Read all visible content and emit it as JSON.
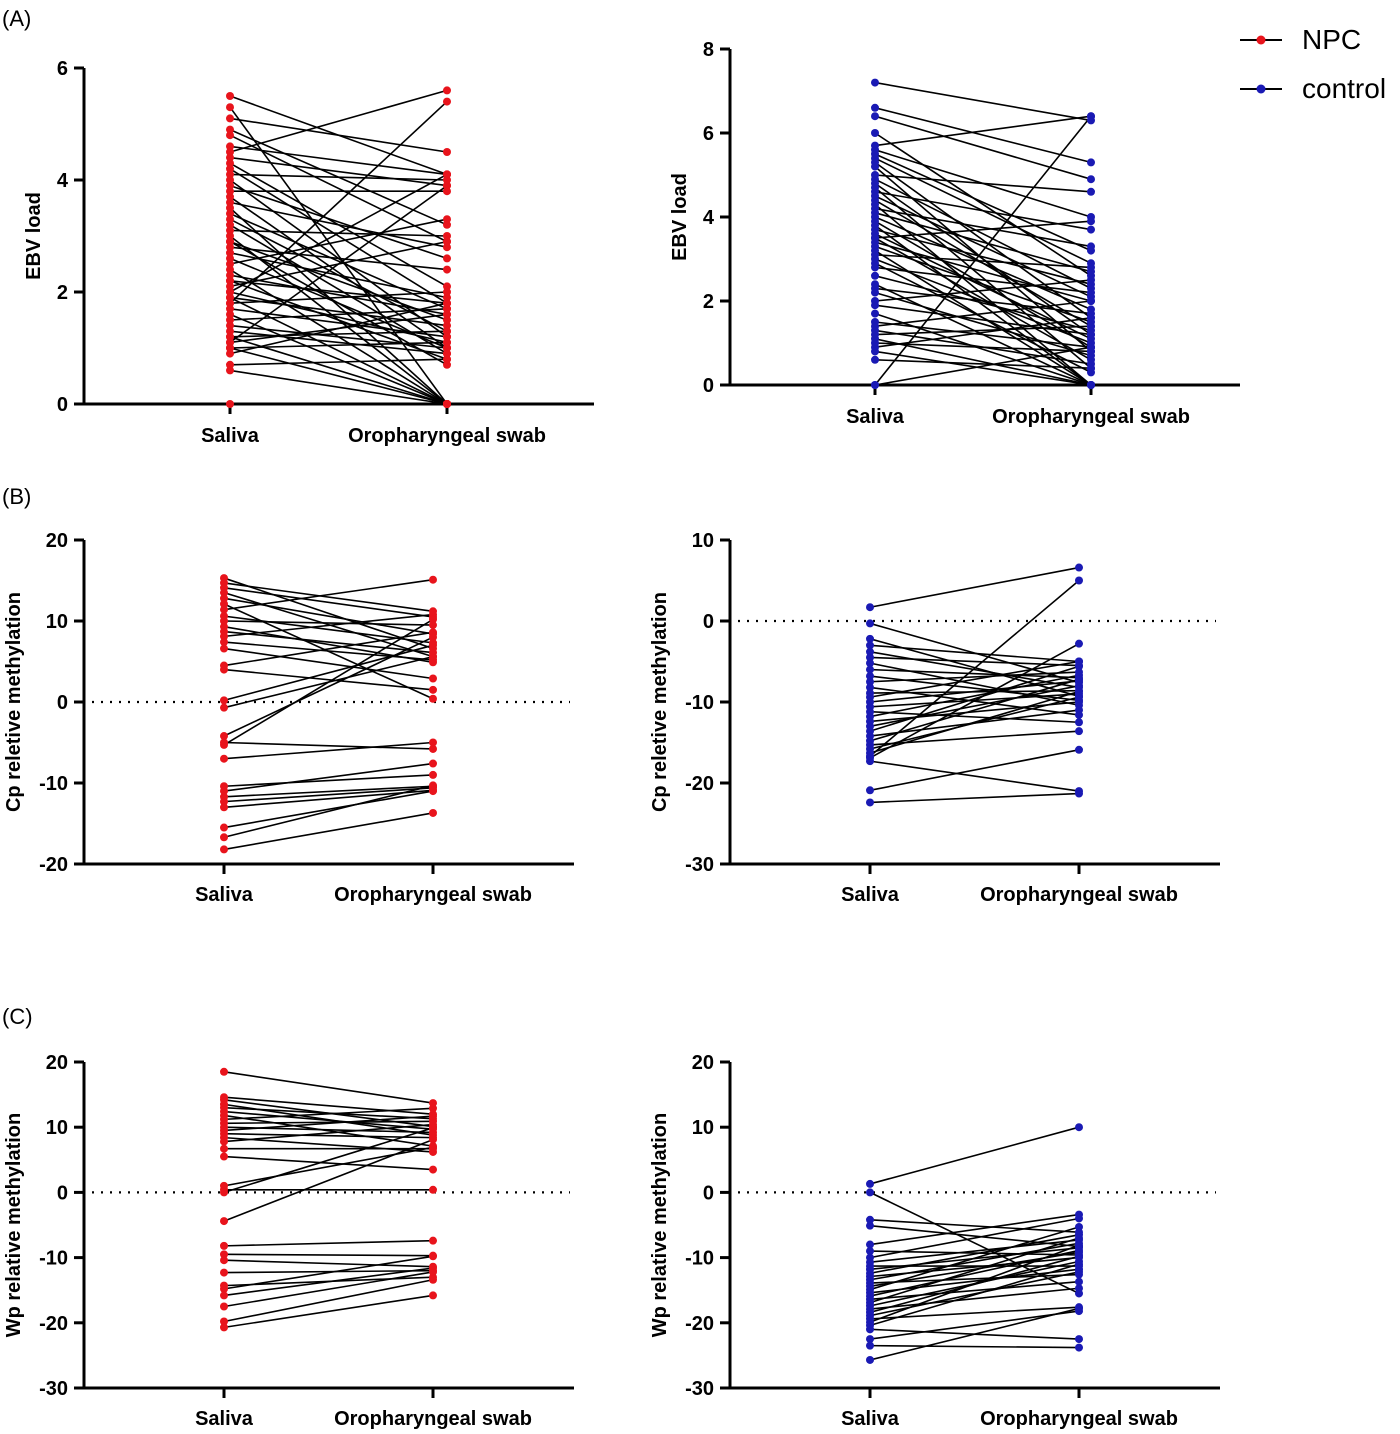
{
  "panel_labels": [
    "(A)",
    "(B)",
    "(C)"
  ],
  "legend": [
    {
      "label": "NPC",
      "color": "#e8141c"
    },
    {
      "label": "control",
      "color": "#1a1ab4"
    }
  ],
  "chart_data": [
    {
      "id": "A-npc",
      "panel": "(A)",
      "group": "NPC",
      "type": "line",
      "ylabel": "EBV load",
      "categories": [
        "Saliva",
        "Oropharyngeal swab"
      ],
      "ylim": [
        0,
        6
      ],
      "yticks": [
        0,
        2,
        4,
        6
      ],
      "zero_line": false,
      "color": "#e8141c",
      "pairs": [
        [
          5.5,
          4.1
        ],
        [
          5.3,
          0.0
        ],
        [
          5.1,
          4.5
        ],
        [
          4.9,
          3.2
        ],
        [
          4.8,
          2.9
        ],
        [
          4.6,
          4.1
        ],
        [
          4.5,
          5.6
        ],
        [
          4.4,
          3.9
        ],
        [
          4.3,
          2.1
        ],
        [
          4.2,
          1.8
        ],
        [
          4.1,
          4.0
        ],
        [
          4.0,
          1.2
        ],
        [
          3.9,
          2.6
        ],
        [
          3.8,
          3.8
        ],
        [
          3.7,
          1.0
        ],
        [
          3.6,
          2.8
        ],
        [
          3.5,
          0.0
        ],
        [
          3.4,
          1.7
        ],
        [
          3.3,
          1.3
        ],
        [
          3.2,
          0.9
        ],
        [
          3.1,
          3.0
        ],
        [
          3.0,
          0.0
        ],
        [
          2.9,
          1.5
        ],
        [
          2.9,
          0.7
        ],
        [
          2.8,
          2.4
        ],
        [
          2.7,
          1.9
        ],
        [
          2.6,
          1.0
        ],
        [
          2.5,
          3.3
        ],
        [
          2.4,
          0.0
        ],
        [
          2.3,
          1.6
        ],
        [
          2.2,
          0.8
        ],
        [
          2.2,
          1.8
        ],
        [
          2.1,
          2.9
        ],
        [
          2.0,
          1.1
        ],
        [
          2.0,
          4.1
        ],
        [
          1.9,
          0.0
        ],
        [
          1.9,
          1.4
        ],
        [
          1.8,
          5.4
        ],
        [
          1.8,
          2.0
        ],
        [
          1.7,
          1.2
        ],
        [
          1.6,
          0.0
        ],
        [
          1.5,
          1.7
        ],
        [
          1.4,
          1.0
        ],
        [
          1.3,
          0.9
        ],
        [
          1.2,
          1.3
        ],
        [
          1.2,
          0.0
        ],
        [
          1.1,
          3.9
        ],
        [
          1.1,
          1.6
        ],
        [
          1.0,
          1.1
        ],
        [
          1.0,
          0.0
        ],
        [
          0.9,
          1.8
        ],
        [
          0.7,
          0.8
        ],
        [
          0.6,
          0.0
        ],
        [
          0.0,
          0.0
        ]
      ]
    },
    {
      "id": "A-ctrl",
      "panel": "(A)",
      "group": "control",
      "type": "line",
      "ylabel": "EBV load",
      "categories": [
        "Saliva",
        "Oropharyngeal swab"
      ],
      "ylim": [
        0,
        8
      ],
      "yticks": [
        0,
        2,
        4,
        6,
        8
      ],
      "zero_line": false,
      "color": "#1a1ab4",
      "pairs": [
        [
          7.2,
          6.3
        ],
        [
          6.6,
          5.3
        ],
        [
          6.4,
          4.9
        ],
        [
          6.0,
          2.6
        ],
        [
          5.7,
          6.4
        ],
        [
          5.6,
          4.0
        ],
        [
          5.5,
          3.2
        ],
        [
          5.4,
          2.9
        ],
        [
          5.3,
          1.6
        ],
        [
          5.2,
          0.8
        ],
        [
          5.0,
          4.6
        ],
        [
          4.9,
          2.3
        ],
        [
          4.8,
          1.2
        ],
        [
          4.7,
          0.4
        ],
        [
          4.6,
          3.7
        ],
        [
          4.5,
          2.1
        ],
        [
          4.4,
          1.4
        ],
        [
          4.3,
          0.0
        ],
        [
          4.2,
          3.3
        ],
        [
          4.1,
          2.7
        ],
        [
          4.0,
          1.8
        ],
        [
          3.9,
          0.9
        ],
        [
          3.8,
          0.0
        ],
        [
          3.7,
          2.4
        ],
        [
          3.6,
          1.1
        ],
        [
          3.5,
          3.9
        ],
        [
          3.5,
          0.6
        ],
        [
          3.4,
          2.0
        ],
        [
          3.3,
          1.5
        ],
        [
          3.2,
          0.0
        ],
        [
          3.1,
          2.8
        ],
        [
          3.0,
          1.0
        ],
        [
          2.9,
          0.3
        ],
        [
          2.8,
          2.2
        ],
        [
          2.6,
          1.3
        ],
        [
          2.4,
          0.0
        ],
        [
          2.3,
          1.7
        ],
        [
          2.2,
          0.7
        ],
        [
          2.0,
          2.5
        ],
        [
          1.9,
          1.2
        ],
        [
          1.7,
          0.0
        ],
        [
          1.5,
          0.9
        ],
        [
          1.4,
          2.0
        ],
        [
          1.3,
          0.5
        ],
        [
          1.2,
          1.4
        ],
        [
          1.1,
          0.0
        ],
        [
          1.0,
          0.8
        ],
        [
          0.9,
          1.6
        ],
        [
          0.8,
          0.0
        ],
        [
          0.6,
          0.4
        ],
        [
          0.0,
          6.4
        ],
        [
          0.0,
          0.9
        ]
      ]
    },
    {
      "id": "B-npc",
      "panel": "(B)",
      "group": "NPC",
      "type": "line",
      "ylabel": "Cp reletive methylation",
      "categories": [
        "Saliva",
        "Oropharyngeal swab"
      ],
      "ylim": [
        -20,
        20
      ],
      "yticks": [
        -20,
        -10,
        0,
        10,
        20
      ],
      "zero_line": true,
      "color": "#e8141c",
      "pairs": [
        [
          15.3,
          6.6
        ],
        [
          14.7,
          11.2
        ],
        [
          14.1,
          10.5
        ],
        [
          13.5,
          5.6
        ],
        [
          12.8,
          8.4
        ],
        [
          12.1,
          0.4
        ],
        [
          11.4,
          15.1
        ],
        [
          10.6,
          7.3
        ],
        [
          10.0,
          9.5
        ],
        [
          9.3,
          4.9
        ],
        [
          8.7,
          6.1
        ],
        [
          8.1,
          10.8
        ],
        [
          7.4,
          5.2
        ],
        [
          6.6,
          2.9
        ],
        [
          4.5,
          8.6
        ],
        [
          4.0,
          1.5
        ],
        [
          0.2,
          7.0
        ],
        [
          -0.7,
          5.6
        ],
        [
          -4.2,
          8.0
        ],
        [
          -5.0,
          -5.8
        ],
        [
          -5.3,
          10.2
        ],
        [
          -7.0,
          -5.0
        ],
        [
          -10.4,
          -9.0
        ],
        [
          -11.0,
          -7.6
        ],
        [
          -11.7,
          -10.4
        ],
        [
          -12.3,
          -10.6
        ],
        [
          -13.0,
          -10.9
        ],
        [
          -15.5,
          -11.0
        ],
        [
          -16.7,
          -10.3
        ],
        [
          -18.2,
          -13.7
        ]
      ]
    },
    {
      "id": "B-ctrl",
      "panel": "(B)",
      "group": "control",
      "type": "line",
      "ylabel": "Cp reletive methylation",
      "categories": [
        "Saliva",
        "Oropharyngeal swab"
      ],
      "ylim": [
        -30,
        10
      ],
      "yticks": [
        -30,
        -20,
        -10,
        0,
        10
      ],
      "zero_line": true,
      "color": "#1a1ab4",
      "pairs": [
        [
          1.7,
          6.6
        ],
        [
          -0.3,
          -7.6
        ],
        [
          -2.2,
          -9.3
        ],
        [
          -3.0,
          -5.0
        ],
        [
          -3.8,
          -8.2
        ],
        [
          -4.5,
          -5.5
        ],
        [
          -5.2,
          -10.4
        ],
        [
          -6.0,
          -7.0
        ],
        [
          -6.8,
          -9.8
        ],
        [
          -7.5,
          -6.3
        ],
        [
          -8.2,
          -11.6
        ],
        [
          -8.9,
          -8.6
        ],
        [
          -9.4,
          -5.0
        ],
        [
          -10.0,
          -7.4
        ],
        [
          -10.6,
          -9.0
        ],
        [
          -11.2,
          -12.5
        ],
        [
          -11.8,
          -6.7
        ],
        [
          -12.4,
          -10.0
        ],
        [
          -13.0,
          -8.0
        ],
        [
          -13.6,
          -5.6
        ],
        [
          -14.2,
          -11.0
        ],
        [
          -14.8,
          -7.2
        ],
        [
          -15.3,
          -13.6
        ],
        [
          -15.8,
          -9.4
        ],
        [
          -16.3,
          -8.7
        ],
        [
          -16.7,
          5.0
        ],
        [
          -16.9,
          -2.8
        ],
        [
          -17.3,
          -21.0
        ],
        [
          -20.9,
          -15.9
        ],
        [
          -22.4,
          -21.3
        ]
      ]
    },
    {
      "id": "C-npc",
      "panel": "(C)",
      "group": "NPC",
      "type": "line",
      "ylabel": "Wp relative methylation",
      "categories": [
        "Saliva",
        "Oropharyngeal swab"
      ],
      "ylim": [
        -30,
        20
      ],
      "yticks": [
        -30,
        -20,
        -10,
        0,
        10,
        20
      ],
      "zero_line": true,
      "color": "#e8141c",
      "pairs": [
        [
          18.5,
          13.7
        ],
        [
          14.6,
          12.0
        ],
        [
          14.2,
          10.1
        ],
        [
          13.5,
          8.8
        ],
        [
          13.0,
          11.3
        ],
        [
          12.4,
          9.7
        ],
        [
          11.8,
          7.1
        ],
        [
          11.2,
          12.9
        ],
        [
          10.6,
          10.9
        ],
        [
          10.0,
          9.2
        ],
        [
          9.5,
          11.7
        ],
        [
          9.0,
          8.4
        ],
        [
          8.4,
          6.2
        ],
        [
          7.8,
          10.4
        ],
        [
          6.7,
          6.7
        ],
        [
          5.5,
          3.5
        ],
        [
          1.0,
          6.9
        ],
        [
          0.4,
          0.4
        ],
        [
          0.0,
          9.9
        ],
        [
          -4.4,
          8.1
        ],
        [
          -8.2,
          -7.4
        ],
        [
          -9.5,
          -9.7
        ],
        [
          -10.4,
          -11.4
        ],
        [
          -12.3,
          -12.0
        ],
        [
          -14.3,
          -13.0
        ],
        [
          -14.8,
          -9.8
        ],
        [
          -15.8,
          -11.6
        ],
        [
          -17.5,
          -12.2
        ],
        [
          -19.8,
          -13.4
        ],
        [
          -20.7,
          -15.8
        ]
      ]
    },
    {
      "id": "C-ctrl",
      "panel": "(C)",
      "group": "control",
      "type": "line",
      "ylabel": "Wp relative methylation",
      "categories": [
        "Saliva",
        "Oropharyngeal swab"
      ],
      "ylim": [
        -30,
        20
      ],
      "yticks": [
        -30,
        -20,
        -10,
        0,
        10,
        20
      ],
      "zero_line": true,
      "color": "#1a1ab4",
      "pairs": [
        [
          1.3,
          10.0
        ],
        [
          0.0,
          -15.5
        ],
        [
          -4.2,
          -6.1
        ],
        [
          -5.1,
          -8.3
        ],
        [
          -8.0,
          -3.4
        ],
        [
          -9.0,
          -9.6
        ],
        [
          -10.0,
          -4.0
        ],
        [
          -10.7,
          -7.3
        ],
        [
          -11.3,
          -11.3
        ],
        [
          -11.8,
          -8.5
        ],
        [
          -12.4,
          -6.5
        ],
        [
          -12.9,
          -10.0
        ],
        [
          -13.4,
          -7.8
        ],
        [
          -13.9,
          -12.6
        ],
        [
          -14.4,
          -9.2
        ],
        [
          -14.9,
          -5.3
        ],
        [
          -15.4,
          -11.8
        ],
        [
          -15.9,
          -8.9
        ],
        [
          -16.4,
          -13.7
        ],
        [
          -16.9,
          -7.0
        ],
        [
          -17.4,
          -10.6
        ],
        [
          -17.9,
          -14.7
        ],
        [
          -18.4,
          -9.8
        ],
        [
          -18.9,
          -12.2
        ],
        [
          -19.4,
          -17.6
        ],
        [
          -19.9,
          -8.1
        ],
        [
          -20.4,
          -11.0
        ],
        [
          -21.0,
          -22.5
        ],
        [
          -22.5,
          -18.2
        ],
        [
          -23.5,
          -23.8
        ],
        [
          -25.7,
          -17.8
        ]
      ]
    }
  ]
}
